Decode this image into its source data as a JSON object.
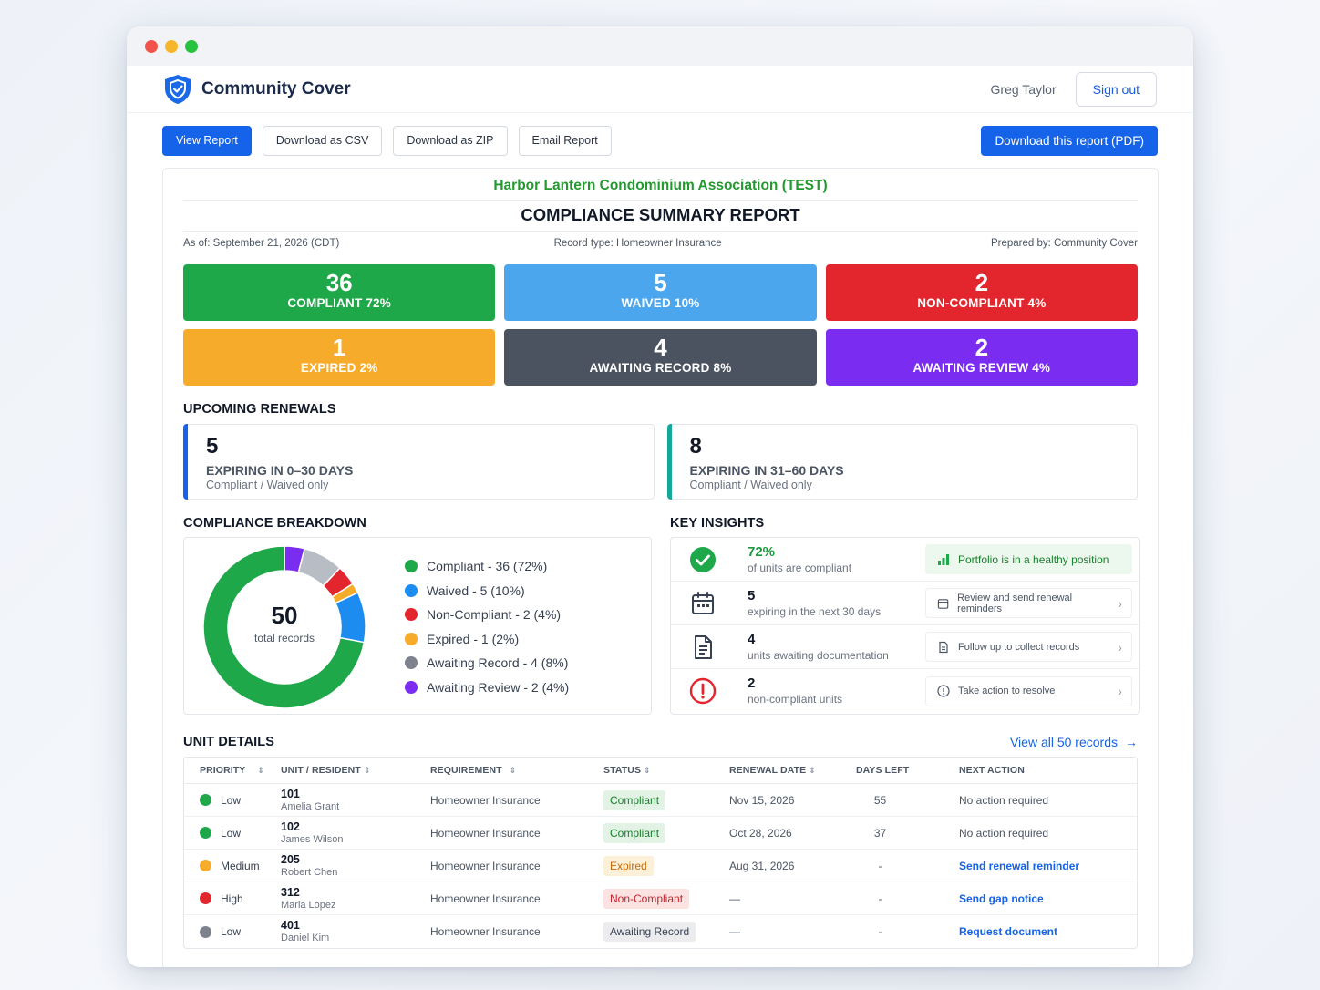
{
  "app": {
    "name": "Community Cover",
    "user": "Greg Taylor",
    "sign_out": "Sign out"
  },
  "toolbar": {
    "view_report": "View Report",
    "download_csv": "Download as CSV",
    "download_zip": "Download as ZIP",
    "email_report": "Email Report",
    "download_pdf": "Download this report (PDF)"
  },
  "report": {
    "organization": "Harbor Lantern Condominium Association (TEST)",
    "title": "COMPLIANCE SUMMARY REPORT",
    "as_of": "As of: September 21, 2026 (CDT)",
    "record_type": "Record type: Homeowner Insurance",
    "prepared_by": "Prepared by: Community Cover"
  },
  "stats": [
    {
      "value": "36",
      "label": "COMPLIANT 72%",
      "color": "#1fa84a"
    },
    {
      "value": "5",
      "label": "WAIVED 10%",
      "color": "#4ba6ee"
    },
    {
      "value": "2",
      "label": "NON-COMPLIANT 4%",
      "color": "#e3262d"
    },
    {
      "value": "1",
      "label": "EXPIRED 2%",
      "color": "#f7ab2a"
    },
    {
      "value": "4",
      "label": "AWAITING RECORD 8%",
      "color": "#4b5260"
    },
    {
      "value": "2",
      "label": "AWAITING REVIEW 4%",
      "color": "#7a2cf0"
    }
  ],
  "renewals": {
    "title": "UPCOMING RENEWALS",
    "items": [
      {
        "value": "5",
        "label": "EXPIRING IN 0–30 DAYS",
        "sub": "Compliant / Waived only",
        "accent": "#1463e8"
      },
      {
        "value": "8",
        "label": "EXPIRING IN 31–60 DAYS",
        "sub": "Compliant / Waived only",
        "accent": "#14a89a"
      }
    ]
  },
  "breakdown": {
    "title": "COMPLIANCE BREAKDOWN",
    "total": "50",
    "total_label": "total records",
    "legend": [
      {
        "label": "Compliant - 36 (72%)",
        "color": "#1fa84a"
      },
      {
        "label": "Waived - 5 (10%)",
        "color": "#1d8cf0"
      },
      {
        "label": "Non-Compliant - 2 (4%)",
        "color": "#e3262d"
      },
      {
        "label": "Expired - 1 (2%)",
        "color": "#f7ab2a"
      },
      {
        "label": "Awaiting Record - 4 (8%)",
        "color": "#7d828d"
      },
      {
        "label": "Awaiting Review - 2 (4%)",
        "color": "#7a2cf0"
      }
    ]
  },
  "chart_data": {
    "type": "pie",
    "categories": [
      "Compliant",
      "Waived",
      "Non-Compliant",
      "Expired",
      "Awaiting Record",
      "Awaiting Review"
    ],
    "values": [
      36,
      5,
      2,
      1,
      4,
      2
    ],
    "colors": [
      "#1fa84a",
      "#1d8cf0",
      "#e3262d",
      "#f7ab2a",
      "#b8bcc4",
      "#7a2cf0"
    ],
    "title": "",
    "center_value": 50
  },
  "insights": {
    "title": "KEY INSIGHTS",
    "items": [
      {
        "icon": "check-circle-icon",
        "value": "72%",
        "desc": "of units are compliant",
        "action": "Portfolio is in a healthy position"
      },
      {
        "icon": "calendar-icon",
        "value": "5",
        "desc": "expiring in the next 30 days",
        "action": "Review and send renewal reminders"
      },
      {
        "icon": "document-icon",
        "value": "4",
        "desc": "units awaiting documentation",
        "action": "Follow up to collect records"
      },
      {
        "icon": "alert-icon",
        "value": "2",
        "desc": "non-compliant units",
        "action": "Take action to resolve"
      }
    ]
  },
  "units": {
    "title": "UNIT DETAILS",
    "view_all": "View all 50 records",
    "columns": [
      "PRIORITY",
      "UNIT / RESIDENT",
      "REQUIREMENT",
      "STATUS",
      "RENEWAL DATE",
      "DAYS LEFT",
      "NEXT ACTION"
    ],
    "rows": [
      {
        "priority": "Low",
        "priority_color": "#1fa84a",
        "unit": "101",
        "resident": "Amelia Grant",
        "requirement": "Homeowner Insurance",
        "status": "Compliant",
        "renewal": "Nov 15, 2026",
        "days": "55",
        "action": "No action required"
      },
      {
        "priority": "Low",
        "priority_color": "#1fa84a",
        "unit": "102",
        "resident": "James Wilson",
        "requirement": "Homeowner Insurance",
        "status": "Compliant",
        "renewal": "Oct 28, 2026",
        "days": "37",
        "action": "No action required"
      },
      {
        "priority": "Medium",
        "priority_color": "#f7ab2a",
        "unit": "205",
        "resident": "Robert Chen",
        "requirement": "Homeowner Insurance",
        "status": "Expired",
        "renewal": "Aug 31, 2026",
        "days": "-",
        "action": "Send renewal reminder"
      },
      {
        "priority": "High",
        "priority_color": "#e3262d",
        "unit": "312",
        "resident": "Maria Lopez",
        "requirement": "Homeowner Insurance",
        "status": "Non-Compliant",
        "renewal": "—",
        "days": "-",
        "action": "Send gap notice"
      },
      {
        "priority": "Low",
        "priority_color": "#7d828d",
        "unit": "401",
        "resident": "Daniel Kim",
        "requirement": "Homeowner Insurance",
        "status": "Awaiting Record",
        "renewal": "—",
        "days": "-",
        "action": "Request document"
      }
    ]
  }
}
